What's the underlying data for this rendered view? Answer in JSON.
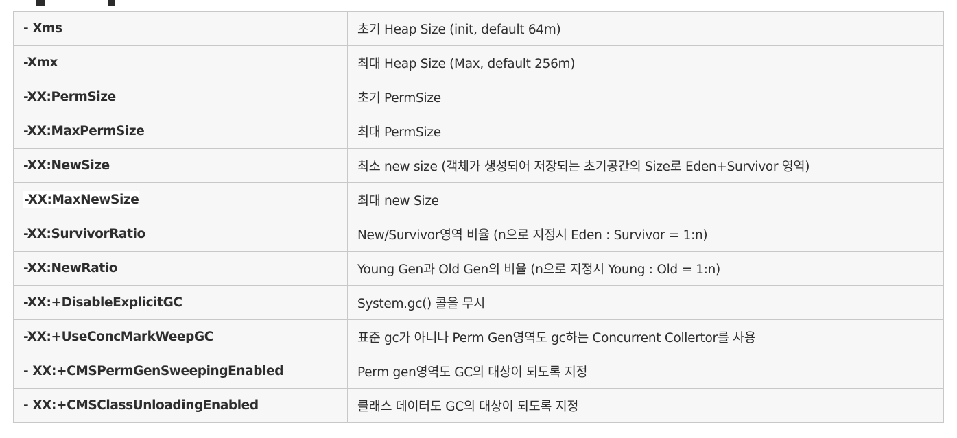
{
  "options_table": {
    "rows": [
      {
        "option": "- Xms",
        "description": "초기 Heap Size (init, default 64m)"
      },
      {
        "option": "-Xmx",
        "description": "최대 Heap Size (Max,  default 256m)"
      },
      {
        "option": "-XX:PermSize",
        "description": "초기 PermSize"
      },
      {
        "option": "-XX:MaxPermSize",
        "description": "최대 PermSize"
      },
      {
        "option": "-XX:NewSize",
        "description": "최소 new size (객체가 생성되어 저장되는 초기공간의 Size로 Eden+Survivor 영역)"
      },
      {
        "option": "-XX:MaxNewSize",
        "description": "최대 new Size"
      },
      {
        "option": "-XX:SurvivorRatio",
        "description": "New/Survivor영역 비율 (n으로 지정시 Eden : Survivor = 1:n)"
      },
      {
        "option": "-XX:NewRatio",
        "description": "Young Gen과 Old Gen의 비율 (n으로 지정시 Young : Old = 1:n)"
      },
      {
        "option": "-XX:+DisableExplicitGC",
        "description": "System.gc() 콜을 무시"
      },
      {
        "option": "-XX:+UseConcMarkWeepGC",
        "description": "표준 gc가 아니나 Perm Gen영역도 gc하는 Concurrent Collertor를 사용"
      },
      {
        "option": "- XX:+CMSPermGenSweepingEnabled",
        "description": "Perm gen영역도 GC의 대상이 되도록 지정"
      },
      {
        "option": "- XX:+CMSClassUnloadingEnabled",
        "description": "클래스 데이터도 GC의 대상이 되도록 지정"
      }
    ]
  }
}
